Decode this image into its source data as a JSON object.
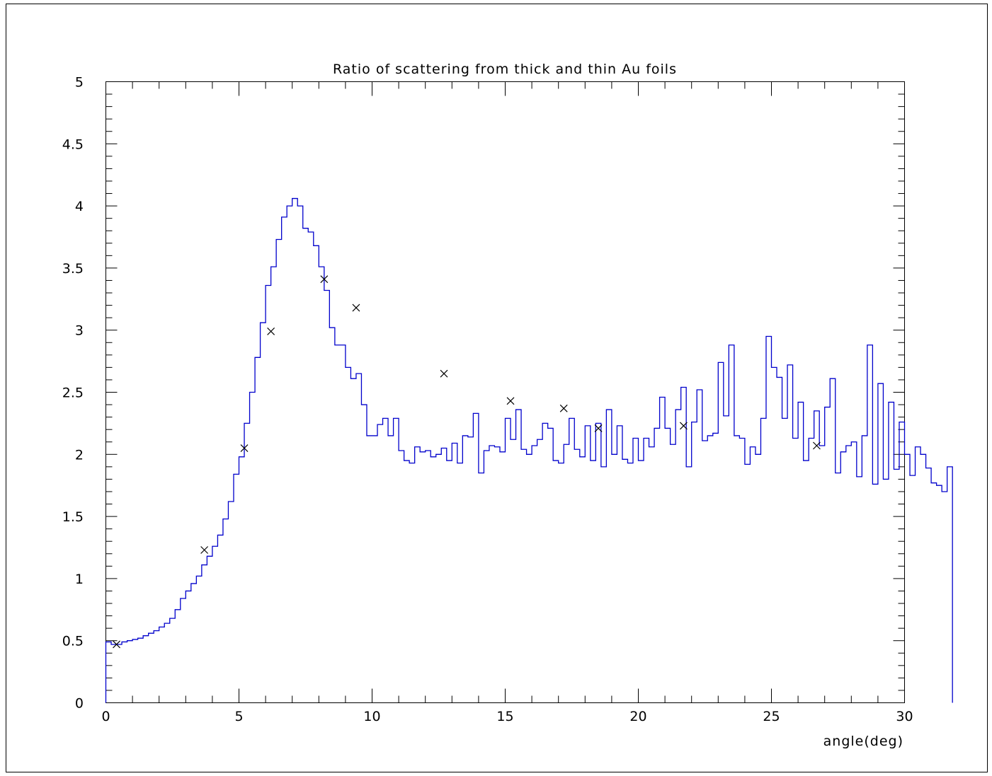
{
  "chart_data": {
    "type": "histogram",
    "title": "Ratio of scattering from thick and thin Au foils",
    "xlabel": "angle(deg)",
    "ylabel": "",
    "xlim": [
      0,
      30
    ],
    "ylim": [
      0,
      5
    ],
    "x_ticks": [
      "0",
      "5",
      "10",
      "15",
      "20",
      "25",
      "30"
    ],
    "y_ticks": [
      "0",
      "0.5",
      "1",
      "1.5",
      "2",
      "2.5",
      "3",
      "3.5",
      "4",
      "4.5",
      "5"
    ],
    "grid": false,
    "bin_width": 0.2,
    "histogram_values": [
      0.49,
      0.47,
      0.47,
      0.49,
      0.5,
      0.51,
      0.52,
      0.54,
      0.56,
      0.58,
      0.61,
      0.64,
      0.68,
      0.75,
      0.84,
      0.9,
      0.96,
      1.02,
      1.11,
      1.18,
      1.26,
      1.35,
      1.48,
      1.62,
      1.84,
      1.98,
      2.25,
      2.5,
      2.78,
      3.06,
      3.36,
      3.51,
      3.73,
      3.91,
      4.0,
      4.06,
      4.0,
      3.82,
      3.79,
      3.68,
      3.51,
      3.32,
      3.02,
      2.88,
      2.88,
      2.7,
      2.61,
      2.65,
      2.4,
      2.15,
      2.15,
      2.24,
      2.29,
      2.15,
      2.29,
      2.03,
      1.95,
      1.93,
      2.06,
      2.02,
      2.03,
      1.98,
      2.0,
      2.05,
      1.95,
      2.09,
      1.93,
      2.15,
      2.14,
      2.33,
      1.85,
      2.03,
      2.07,
      2.06,
      2.02,
      2.29,
      2.12,
      2.36,
      2.04,
      2.0,
      2.07,
      2.12,
      2.25,
      2.21,
      1.95,
      1.93,
      2.08,
      2.29,
      2.04,
      1.98,
      2.23,
      1.95,
      2.25,
      1.9,
      2.36,
      2.0,
      2.23,
      1.96,
      1.93,
      2.13,
      1.95,
      2.13,
      2.06,
      2.21,
      2.46,
      2.21,
      2.08,
      2.36,
      2.54,
      1.9,
      2.26,
      2.52,
      2.11,
      2.15,
      2.17,
      2.74,
      2.31,
      2.88,
      2.15,
      2.13,
      1.92,
      2.06,
      2.0,
      2.29,
      2.95,
      2.7,
      2.62,
      2.29,
      2.72,
      2.13,
      2.42,
      1.95,
      2.13,
      2.35,
      2.07,
      2.38,
      2.61,
      1.85,
      2.02,
      2.07,
      2.1,
      1.82,
      2.15,
      2.88,
      1.76,
      2.57,
      1.8,
      2.42,
      1.88,
      2.26,
      2.0,
      1.83,
      2.06,
      2.0,
      1.89,
      1.77,
      1.75,
      1.7,
      1.9
    ],
    "series": [
      {
        "type": "scatter",
        "marker": "x",
        "x": [
          0.4,
          3.7,
          5.2,
          6.2,
          8.2,
          9.4,
          12.7,
          15.2,
          17.2,
          18.5,
          21.7,
          26.7
        ],
        "y": [
          0.47,
          1.23,
          2.05,
          2.99,
          3.41,
          3.18,
          2.65,
          2.43,
          2.37,
          2.21,
          2.23,
          2.07
        ]
      }
    ],
    "colors": {
      "histogram": "#0000cc",
      "markers": "#000000",
      "axes": "#000000"
    }
  }
}
